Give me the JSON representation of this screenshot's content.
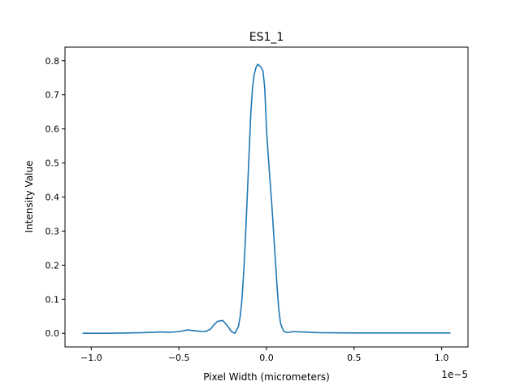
{
  "chart_data": {
    "type": "line",
    "title": "ES1_1",
    "xlabel": "Pixel Width (micrometers)",
    "ylabel": "Intensity Value",
    "x_offset_label": "1e−5",
    "xlim": [
      -1.15,
      1.15
    ],
    "ylim": [
      -0.04,
      0.84
    ],
    "x_ticks": [
      -1.0,
      -0.5,
      0.0,
      0.5,
      1.0
    ],
    "x_tick_labels": [
      "−1.0",
      "−0.5",
      "0.0",
      "0.5",
      "1.0"
    ],
    "y_ticks": [
      0.0,
      0.1,
      0.2,
      0.3,
      0.4,
      0.5,
      0.6,
      0.7,
      0.8
    ],
    "y_tick_labels": [
      "0.0",
      "0.1",
      "0.2",
      "0.3",
      "0.4",
      "0.5",
      "0.6",
      "0.7",
      "0.8"
    ],
    "grid": false,
    "series": [
      {
        "color": "#1f77b4",
        "x": [
          -1.05,
          -0.9,
          -0.8,
          -0.7,
          -0.65,
          -0.6,
          -0.55,
          -0.5,
          -0.45,
          -0.4,
          -0.35,
          -0.32,
          -0.3,
          -0.28,
          -0.25,
          -0.22,
          -0.2,
          -0.18,
          -0.16,
          -0.15,
          -0.14,
          -0.13,
          -0.12,
          -0.11,
          -0.1,
          -0.09,
          -0.08,
          -0.07,
          -0.06,
          -0.05,
          -0.04,
          -0.03,
          -0.02,
          -0.01,
          0.0,
          0.01,
          0.02,
          0.03,
          0.04,
          0.05,
          0.06,
          0.07,
          0.08,
          0.09,
          0.1,
          0.12,
          0.15,
          0.2,
          0.3,
          0.5,
          0.8,
          1.05
        ],
        "y": [
          0.0,
          0.0,
          0.001,
          0.002,
          0.003,
          0.004,
          0.003,
          0.005,
          0.01,
          0.007,
          0.005,
          0.012,
          0.025,
          0.035,
          0.038,
          0.02,
          0.005,
          0.0,
          0.02,
          0.05,
          0.1,
          0.18,
          0.28,
          0.4,
          0.52,
          0.64,
          0.72,
          0.76,
          0.78,
          0.79,
          0.785,
          0.78,
          0.77,
          0.72,
          0.6,
          0.52,
          0.45,
          0.38,
          0.3,
          0.22,
          0.14,
          0.07,
          0.03,
          0.015,
          0.005,
          0.002,
          0.005,
          0.004,
          0.002,
          0.001,
          0.001,
          0.001
        ]
      }
    ]
  }
}
